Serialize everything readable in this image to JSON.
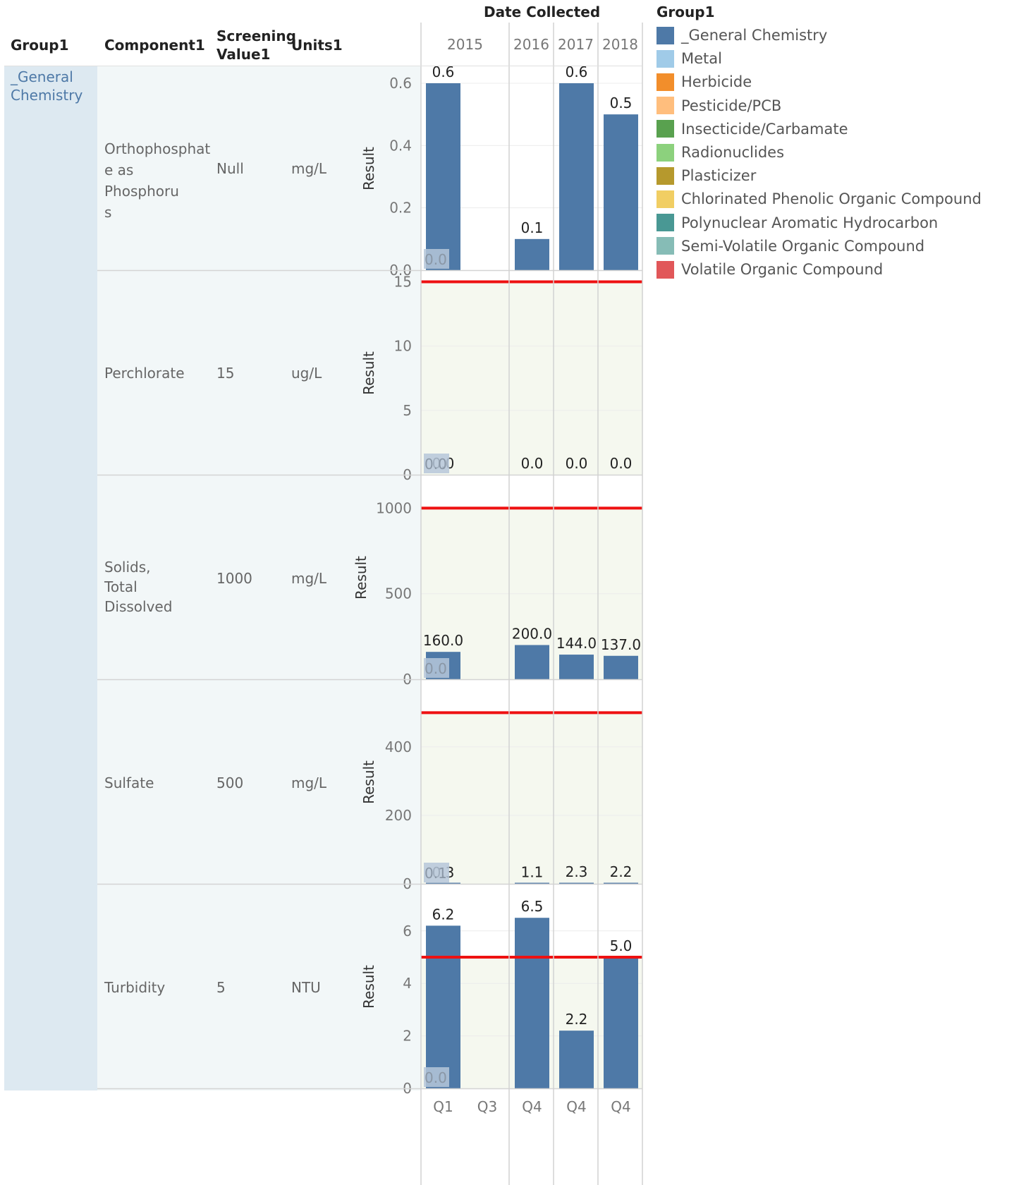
{
  "header": {
    "group": "Group1",
    "component": "Component1",
    "screening_line1": "Screening",
    "screening_line2": "Value1",
    "units": "Units1",
    "date_collected": "Date Collected"
  },
  "group_label_line1": "_General",
  "group_label_line2": "Chemistry",
  "rows": [
    {
      "component_lines": [
        "Orthophosphat",
        "e as Phosphoru",
        "s"
      ],
      "screening": "Null",
      "units": "mg/L"
    },
    {
      "component_lines": [
        "Perchlorate"
      ],
      "screening": "15",
      "units": "ug/L"
    },
    {
      "component_lines": [
        "Solids, Total",
        "Dissolved"
      ],
      "screening": "1000",
      "units": "mg/L"
    },
    {
      "component_lines": [
        "Sulfate"
      ],
      "screening": "500",
      "units": "mg/L"
    },
    {
      "component_lines": [
        "Turbidity"
      ],
      "screening": "5",
      "units": "NTU"
    }
  ],
  "legend": {
    "title": "Group1",
    "items": [
      {
        "label": "_General Chemistry",
        "color": "#4e79a7"
      },
      {
        "label": "Metal",
        "color": "#a0cbe8"
      },
      {
        "label": "Herbicide",
        "color": "#f28e2b"
      },
      {
        "label": "Pesticide/PCB",
        "color": "#ffbe7d"
      },
      {
        "label": "Insecticide/Carbamate",
        "color": "#59a14f"
      },
      {
        "label": "Radionuclides",
        "color": "#8cd17d"
      },
      {
        "label": "Plasticizer",
        "color": "#b6992d"
      },
      {
        "label": "Chlorinated Phenolic Organic Compound",
        "color": "#f1ce63"
      },
      {
        "label": "Polynuclear Aromatic Hydrocarbon",
        "color": "#499894"
      },
      {
        "label": "Semi-Volatile Organic Compound",
        "color": "#86bcb6"
      },
      {
        "label": "Volatile Organic Compound",
        "color": "#e15759"
      }
    ]
  },
  "chart_data": {
    "type": "bar",
    "ylabel": "Result",
    "years": [
      "2015",
      "2016",
      "2017",
      "2018"
    ],
    "quarter_labels": [
      "Q1",
      "Q3",
      "Q4",
      "Q4",
      "Q4"
    ],
    "bar_color": "#4e79a7",
    "screening_line_color": "#ee1111",
    "panels": [
      {
        "component": "Orthophosphate as Phosphorus",
        "ylim": [
          0,
          0.6
        ],
        "ticks": [
          "0.0",
          "0.2",
          "0.4",
          "0.6"
        ],
        "tick_values": [
          0,
          0.2,
          0.4,
          0.6
        ],
        "screening_value": null,
        "exceed_shading": false,
        "values": [
          0.6,
          null,
          0.1,
          0.6,
          0.5
        ],
        "labels": [
          "0.6",
          "",
          "0.1",
          "0.6",
          "0.5"
        ],
        "small_label": "0.0"
      },
      {
        "component": "Perchlorate",
        "ylim": [
          0,
          15.3
        ],
        "ticks": [
          "0",
          "5",
          "10",
          "15"
        ],
        "tick_values": [
          0,
          5,
          10,
          15
        ],
        "screening_value": 15,
        "exceed_shading": true,
        "values": [
          0,
          null,
          0,
          0,
          0
        ],
        "labels": [
          "0.0",
          "",
          "0.0",
          "0.0",
          "0.0"
        ],
        "small_label": "0.0"
      },
      {
        "component": "Solids, Total Dissolved",
        "ylim": [
          0,
          1150
        ],
        "ticks": [
          "0",
          "500",
          "1000"
        ],
        "tick_values": [
          0,
          500,
          1000
        ],
        "screening_value": 1000,
        "exceed_shading": true,
        "values": [
          160,
          null,
          200,
          144,
          137
        ],
        "labels": [
          "160.0",
          "",
          "200.0",
          "144.0",
          "137.0"
        ],
        "small_label": "0.0"
      },
      {
        "component": "Sulfate",
        "ylim": [
          0,
          575
        ],
        "ticks": [
          "0",
          "200",
          "400"
        ],
        "tick_values": [
          0,
          200,
          400
        ],
        "screening_value": 500,
        "exceed_shading": true,
        "values": [
          0.3,
          null,
          1.1,
          2.3,
          2.2
        ],
        "labels": [
          "0.3",
          "",
          "1.1",
          "2.3",
          "2.2"
        ],
        "small_label": "0.1"
      },
      {
        "component": "Turbidity",
        "ylim": [
          0,
          7.5
        ],
        "ticks": [
          "0",
          "2",
          "4",
          "6"
        ],
        "tick_values": [
          0,
          2,
          4,
          6
        ],
        "screening_value": 5,
        "exceed_shading": true,
        "values": [
          6.2,
          null,
          6.5,
          2.2,
          5.0
        ],
        "labels": [
          "6.2",
          "",
          "6.5",
          "2.2",
          "5.0"
        ],
        "small_label": "0.0"
      }
    ]
  }
}
